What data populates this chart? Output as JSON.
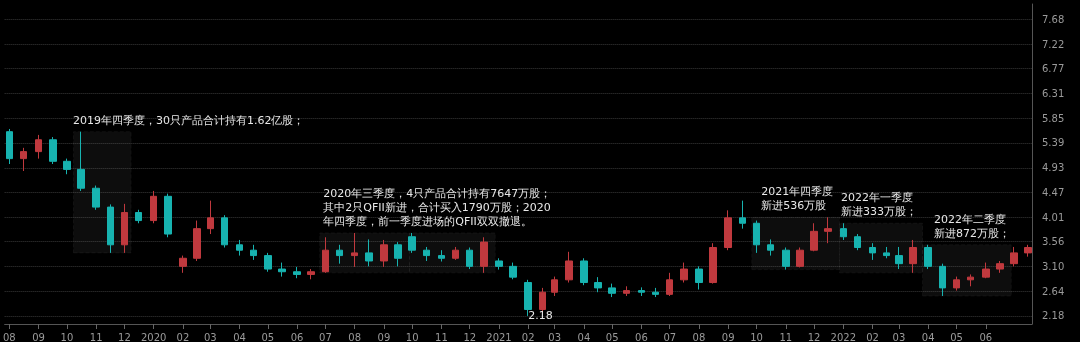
{
  "chart_data": {
    "type": "candlestick",
    "x": [
      "2019-08-01",
      "2019-08-16",
      "2019-09-01",
      "2019-09-16",
      "2019-10-01",
      "2019-10-16",
      "2019-11-01",
      "2019-11-16",
      "2019-12-01",
      "2019-12-16",
      "2020-01-01",
      "2020-01-16",
      "2020-02-01",
      "2020-02-16",
      "2020-03-01",
      "2020-03-16",
      "2020-04-01",
      "2020-04-16",
      "2020-05-01",
      "2020-05-16",
      "2020-06-01",
      "2020-06-16",
      "2020-07-01",
      "2020-07-16",
      "2020-08-01",
      "2020-08-16",
      "2020-09-01",
      "2020-09-16",
      "2020-10-01",
      "2020-10-16",
      "2020-11-01",
      "2020-11-16",
      "2020-12-01",
      "2020-12-16",
      "2021-01-01",
      "2021-01-16",
      "2021-02-01",
      "2021-02-16",
      "2021-03-01",
      "2021-03-16",
      "2021-04-01",
      "2021-04-16",
      "2021-05-01",
      "2021-05-16",
      "2021-06-01",
      "2021-06-16",
      "2021-07-01",
      "2021-07-16",
      "2021-08-01",
      "2021-08-16",
      "2021-09-01",
      "2021-09-16",
      "2021-10-01",
      "2021-10-16",
      "2021-11-01",
      "2021-11-16",
      "2021-12-01",
      "2021-12-16",
      "2022-01-01",
      "2022-01-16",
      "2022-02-01",
      "2022-02-16",
      "2022-03-01",
      "2022-03-16",
      "2022-04-01",
      "2022-04-16",
      "2022-05-01",
      "2022-05-16",
      "2022-06-01",
      "2022-06-16",
      "2022-07-01",
      "2022-07-16"
    ],
    "ohlc": [
      [
        5.6,
        5.65,
        5.0,
        5.1
      ],
      [
        5.1,
        5.3,
        4.87,
        5.23
      ],
      [
        5.23,
        5.54,
        5.1,
        5.45
      ],
      [
        5.45,
        5.5,
        5.0,
        5.05
      ],
      [
        5.05,
        5.1,
        4.81,
        4.9
      ],
      [
        4.9,
        5.6,
        4.5,
        4.55
      ],
      [
        4.55,
        4.6,
        4.15,
        4.2
      ],
      [
        4.2,
        4.25,
        3.35,
        3.5
      ],
      [
        3.5,
        4.26,
        3.35,
        4.1
      ],
      [
        4.1,
        4.15,
        3.9,
        3.95
      ],
      [
        3.95,
        4.5,
        3.9,
        4.4
      ],
      [
        4.4,
        4.45,
        3.64,
        3.7
      ],
      [
        3.1,
        3.3,
        2.98,
        3.25
      ],
      [
        3.25,
        3.95,
        3.2,
        3.8
      ],
      [
        3.8,
        4.32,
        3.7,
        4.0
      ],
      [
        4.0,
        4.05,
        3.45,
        3.5
      ],
      [
        3.5,
        3.59,
        3.3,
        3.4
      ],
      [
        3.4,
        3.5,
        3.22,
        3.3
      ],
      [
        3.3,
        3.35,
        3.0,
        3.05
      ],
      [
        3.05,
        3.17,
        2.91,
        3.0
      ],
      [
        3.0,
        3.09,
        2.88,
        2.95
      ],
      [
        2.95,
        3.05,
        2.86,
        3.0
      ],
      [
        3.0,
        3.64,
        2.98,
        3.4
      ],
      [
        3.4,
        3.5,
        3.15,
        3.3
      ],
      [
        3.3,
        3.72,
        3.09,
        3.35
      ],
      [
        3.35,
        3.6,
        3.1,
        3.2
      ],
      [
        3.2,
        3.59,
        3.09,
        3.5
      ],
      [
        3.5,
        3.55,
        3.1,
        3.25
      ],
      [
        3.65,
        3.72,
        3.35,
        3.4
      ],
      [
        3.4,
        3.46,
        3.2,
        3.3
      ],
      [
        3.3,
        3.4,
        3.19,
        3.25
      ],
      [
        3.25,
        3.46,
        3.22,
        3.4
      ],
      [
        3.4,
        3.45,
        3.05,
        3.1
      ],
      [
        3.1,
        3.64,
        2.98,
        3.55
      ],
      [
        3.2,
        3.25,
        3.04,
        3.1
      ],
      [
        3.1,
        3.17,
        2.86,
        2.9
      ],
      [
        2.8,
        2.85,
        2.18,
        2.3
      ],
      [
        2.3,
        2.7,
        2.25,
        2.62
      ],
      [
        2.62,
        2.91,
        2.55,
        2.85
      ],
      [
        2.85,
        3.37,
        2.8,
        3.2
      ],
      [
        3.2,
        3.25,
        2.75,
        2.8
      ],
      [
        2.8,
        2.9,
        2.62,
        2.7
      ],
      [
        2.7,
        2.78,
        2.53,
        2.6
      ],
      [
        2.6,
        2.73,
        2.55,
        2.65
      ],
      [
        2.65,
        2.71,
        2.55,
        2.62
      ],
      [
        2.62,
        2.7,
        2.53,
        2.58
      ],
      [
        2.58,
        2.98,
        2.55,
        2.85
      ],
      [
        2.85,
        3.17,
        2.8,
        3.05
      ],
      [
        3.05,
        3.1,
        2.67,
        2.8
      ],
      [
        2.8,
        3.53,
        2.78,
        3.45
      ],
      [
        3.45,
        4.14,
        3.4,
        4.0
      ],
      [
        4.0,
        4.32,
        3.8,
        3.9
      ],
      [
        3.9,
        3.95,
        3.35,
        3.5
      ],
      [
        3.5,
        3.6,
        3.3,
        3.4
      ],
      [
        3.4,
        3.45,
        3.04,
        3.1
      ],
      [
        3.1,
        3.45,
        3.08,
        3.4
      ],
      [
        3.4,
        3.9,
        3.38,
        3.75
      ],
      [
        3.75,
        4.01,
        3.53,
        3.8
      ],
      [
        3.8,
        3.9,
        3.59,
        3.65
      ],
      [
        3.65,
        3.7,
        3.4,
        3.45
      ],
      [
        3.45,
        3.53,
        3.22,
        3.35
      ],
      [
        3.35,
        3.46,
        3.25,
        3.3
      ],
      [
        3.3,
        3.46,
        3.05,
        3.15
      ],
      [
        3.15,
        3.59,
        2.98,
        3.45
      ],
      [
        3.45,
        3.5,
        3.05,
        3.1
      ],
      [
        3.1,
        3.15,
        2.55,
        2.7
      ],
      [
        2.7,
        2.91,
        2.65,
        2.85
      ],
      [
        2.85,
        2.95,
        2.73,
        2.9
      ],
      [
        2.9,
        3.17,
        2.88,
        3.05
      ],
      [
        3.05,
        3.2,
        2.98,
        3.15
      ],
      [
        3.15,
        3.46,
        3.1,
        3.35
      ],
      [
        3.35,
        3.5,
        3.28,
        3.45
      ]
    ],
    "colors": [
      "#17b3b0",
      "#c0393e",
      "#c0393e",
      "#17b3b0",
      "#17b3b0",
      "#17b3b0",
      "#17b3b0",
      "#17b3b0",
      "#c0393e",
      "#17b3b0",
      "#c0393e",
      "#17b3b0",
      "#c0393e",
      "#c0393e",
      "#c0393e",
      "#17b3b0",
      "#17b3b0",
      "#17b3b0",
      "#17b3b0",
      "#17b3b0",
      "#17b3b0",
      "#c0393e",
      "#c0393e",
      "#17b3b0",
      "#c0393e",
      "#17b3b0",
      "#c0393e",
      "#17b3b0",
      "#17b3b0",
      "#17b3b0",
      "#17b3b0",
      "#c0393e",
      "#17b3b0",
      "#c0393e",
      "#17b3b0",
      "#17b3b0",
      "#17b3b0",
      "#c0393e",
      "#c0393e",
      "#c0393e",
      "#17b3b0",
      "#17b3b0",
      "#17b3b0",
      "#c0393e",
      "#17b3b0",
      "#17b3b0",
      "#c0393e",
      "#c0393e",
      "#17b3b0",
      "#c0393e",
      "#c0393e",
      "#17b3b0",
      "#17b3b0",
      "#17b3b0",
      "#17b3b0",
      "#c0393e",
      "#c0393e",
      "#c0393e",
      "#17b3b0",
      "#17b3b0",
      "#17b3b0",
      "#17b3b0",
      "#17b3b0",
      "#c0393e",
      "#17b3b0",
      "#17b3b0",
      "#c0393e",
      "#c0393e",
      "#c0393e",
      "#c0393e",
      "#c0393e",
      "#c0393e"
    ],
    "xlim": [
      "2019-07-27",
      "2022-07-20"
    ],
    "xticks": [
      {
        "value": "2019-08-01",
        "label": "08"
      },
      {
        "value": "2019-09-01",
        "label": "09"
      },
      {
        "value": "2019-10-01",
        "label": "10"
      },
      {
        "value": "2019-11-01",
        "label": "11"
      },
      {
        "value": "2019-12-01",
        "label": "12"
      },
      {
        "value": "2020-01-01",
        "label": "2020"
      },
      {
        "value": "2020-02-01",
        "label": "02"
      },
      {
        "value": "2020-03-01",
        "label": "03"
      },
      {
        "value": "2020-04-01",
        "label": "04"
      },
      {
        "value": "2020-05-01",
        "label": "05"
      },
      {
        "value": "2020-06-01",
        "label": "06"
      },
      {
        "value": "2020-07-01",
        "label": "07"
      },
      {
        "value": "2020-08-01",
        "label": "08"
      },
      {
        "value": "2020-09-01",
        "label": "09"
      },
      {
        "value": "2020-10-01",
        "label": "10"
      },
      {
        "value": "2020-11-01",
        "label": "11"
      },
      {
        "value": "2020-12-01",
        "label": "12"
      },
      {
        "value": "2021-01-01",
        "label": "2021"
      },
      {
        "value": "2021-02-01",
        "label": "02"
      },
      {
        "value": "2021-03-01",
        "label": "03"
      },
      {
        "value": "2021-04-01",
        "label": "04"
      },
      {
        "value": "2021-05-01",
        "label": "05"
      },
      {
        "value": "2021-06-01",
        "label": "06"
      },
      {
        "value": "2021-07-01",
        "label": "07"
      },
      {
        "value": "2021-08-01",
        "label": "08"
      },
      {
        "value": "2021-09-01",
        "label": "09"
      },
      {
        "value": "2021-10-01",
        "label": "10"
      },
      {
        "value": "2021-11-01",
        "label": "11"
      },
      {
        "value": "2021-12-01",
        "label": "12"
      },
      {
        "value": "2022-01-01",
        "label": "2022"
      },
      {
        "value": "2022-02-01",
        "label": "02"
      },
      {
        "value": "2022-03-01",
        "label": "03"
      },
      {
        "value": "2022-04-01",
        "label": "04"
      },
      {
        "value": "2022-05-01",
        "label": "05"
      },
      {
        "value": "2022-06-01",
        "label": "06"
      }
    ],
    "ylim": [
      2.03,
      7.97
    ],
    "yticks": [
      2.18,
      2.64,
      {
        "value": 3.1,
        "label": "3.10"
      },
      3.56,
      4.01,
      4.47,
      4.93,
      5.39,
      5.85,
      6.31,
      6.77,
      7.22,
      7.68
    ],
    "grid": "y",
    "bands": [
      {
        "axis": "x",
        "from": "2019-10-08",
        "to": "2019-12-08",
        "color": "#d8d8d8",
        "label": "2019年四季度，30只产品合计持有1.62亿股；"
      },
      {
        "axis": "x",
        "from": "2020-06-25",
        "to": "2020-09-28",
        "color": "#d8d8d8",
        "label": "2020年三季度，4只产品合计持有7647万股；其中2只QFII新进，合计买入1790万股；2020年四季度，前一季度进场的QFII双双撤退。"
      },
      {
        "axis": "x",
        "from": "2020-09-28",
        "to": "2020-12-28",
        "color": "#d8d8d8"
      },
      {
        "axis": "x",
        "from": "2021-09-26",
        "to": "2021-12-28",
        "color": "#d8d8d8",
        "label": "2021年四季度新进536万股"
      },
      {
        "axis": "x",
        "from": "2021-12-28",
        "to": "2022-03-26",
        "color": "#d8d8d8",
        "label": "2022年一季度新进333万股；"
      },
      {
        "axis": "x",
        "from": "2022-03-26",
        "to": "2022-06-28",
        "color": "#d8d8d8",
        "label": "2022年二季度新进872万股；"
      }
    ],
    "annotations": [
      {
        "text": "2.18",
        "x": "2021-02-01",
        "y": 2.18
      }
    ]
  }
}
